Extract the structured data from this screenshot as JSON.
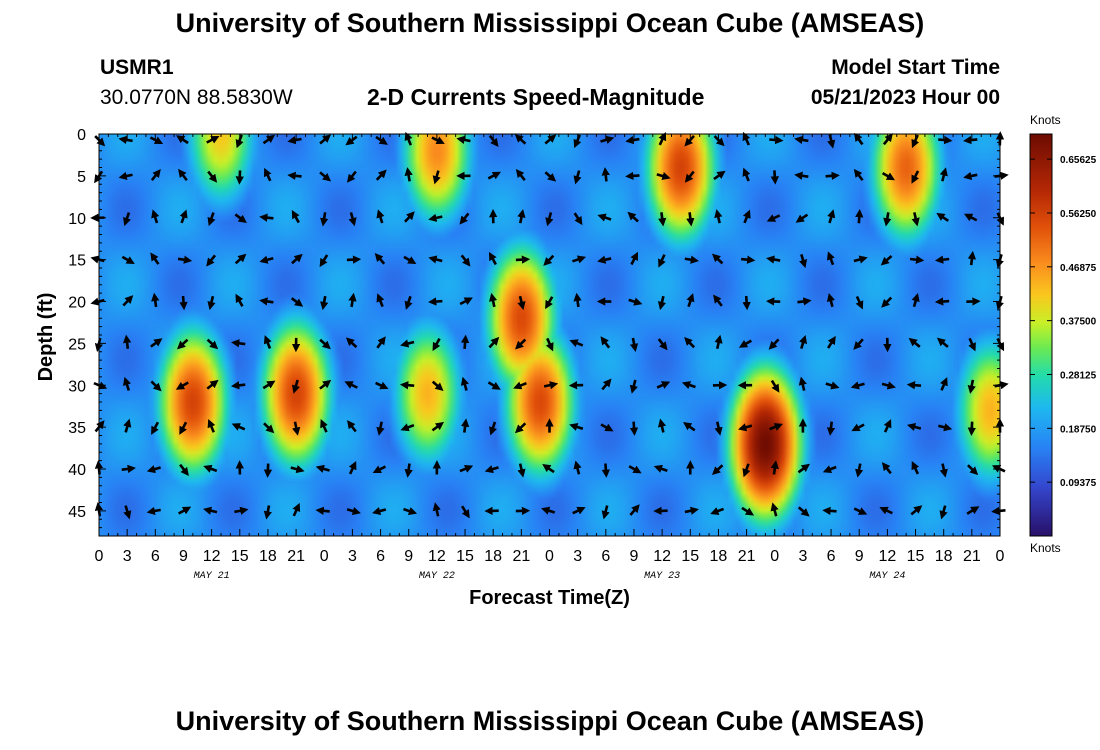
{
  "title": "University of Southern Mississippi Ocean Cube (AMSEAS)",
  "bottom_title": "University of Southern Mississippi Ocean Cube (AMSEAS)",
  "station": {
    "name": "USMR1",
    "coords": "30.0770N  88.5830W"
  },
  "model_start": {
    "label": "Model Start Time",
    "value": "05/21/2023 Hour 00"
  },
  "chart_data": {
    "type": "heatmap",
    "title": "2-D Currents Speed-Magnitude",
    "xlabel": "Forecast Time(Z)",
    "ylabel": "Depth (ft)",
    "colorbar_label": "Knots",
    "colorbar_ticks": [
      "0.65625",
      "0.56250",
      "0.46875",
      "0.37500",
      "0.28125",
      "0.18750",
      "0.09375"
    ],
    "colorbar_values": [
      0.65625,
      0.5625,
      0.46875,
      0.375,
      0.28125,
      0.1875,
      0.09375
    ],
    "value_range": [
      0.0,
      0.7
    ],
    "x_ticks": [
      "0",
      "3",
      "6",
      "9",
      "12",
      "15",
      "18",
      "21",
      "0",
      "3",
      "6",
      "9",
      "12",
      "15",
      "18",
      "21",
      "0",
      "3",
      "6",
      "9",
      "12",
      "15",
      "18",
      "21",
      "0",
      "3",
      "6",
      "9",
      "12",
      "15",
      "18",
      "21",
      "0"
    ],
    "x_range_hours": [
      0,
      96
    ],
    "day_labels": [
      "MAY 21",
      "MAY 22",
      "MAY 23",
      "MAY 24"
    ],
    "y_ticks": [
      "0",
      "5",
      "10",
      "15",
      "20",
      "25",
      "30",
      "35",
      "40",
      "45"
    ],
    "y_values": [
      0,
      5,
      10,
      15,
      20,
      25,
      30,
      35,
      40,
      45
    ],
    "y_range": [
      0,
      48
    ],
    "arrow_depths_ft": [
      0,
      5,
      10,
      15,
      20,
      25,
      30,
      35,
      40,
      45
    ],
    "arrow_interval_hours": 3,
    "high_speed_cores": [
      {
        "time_h": 13,
        "depth_ft": 0,
        "speed": 0.42
      },
      {
        "time_h": 36,
        "depth_ft": 2,
        "speed": 0.48
      },
      {
        "time_h": 45,
        "depth_ft": 22,
        "speed": 0.55
      },
      {
        "time_h": 62,
        "depth_ft": 4,
        "speed": 0.56
      },
      {
        "time_h": 86,
        "depth_ft": 4,
        "speed": 0.52
      },
      {
        "time_h": 10,
        "depth_ft": 32,
        "speed": 0.56
      },
      {
        "time_h": 21,
        "depth_ft": 31,
        "speed": 0.56
      },
      {
        "time_h": 35,
        "depth_ft": 31,
        "speed": 0.44
      },
      {
        "time_h": 47,
        "depth_ft": 32,
        "speed": 0.55
      },
      {
        "time_h": 71,
        "depth_ft": 37,
        "speed": 0.7
      },
      {
        "time_h": 95,
        "depth_ft": 33,
        "speed": 0.44
      }
    ]
  }
}
